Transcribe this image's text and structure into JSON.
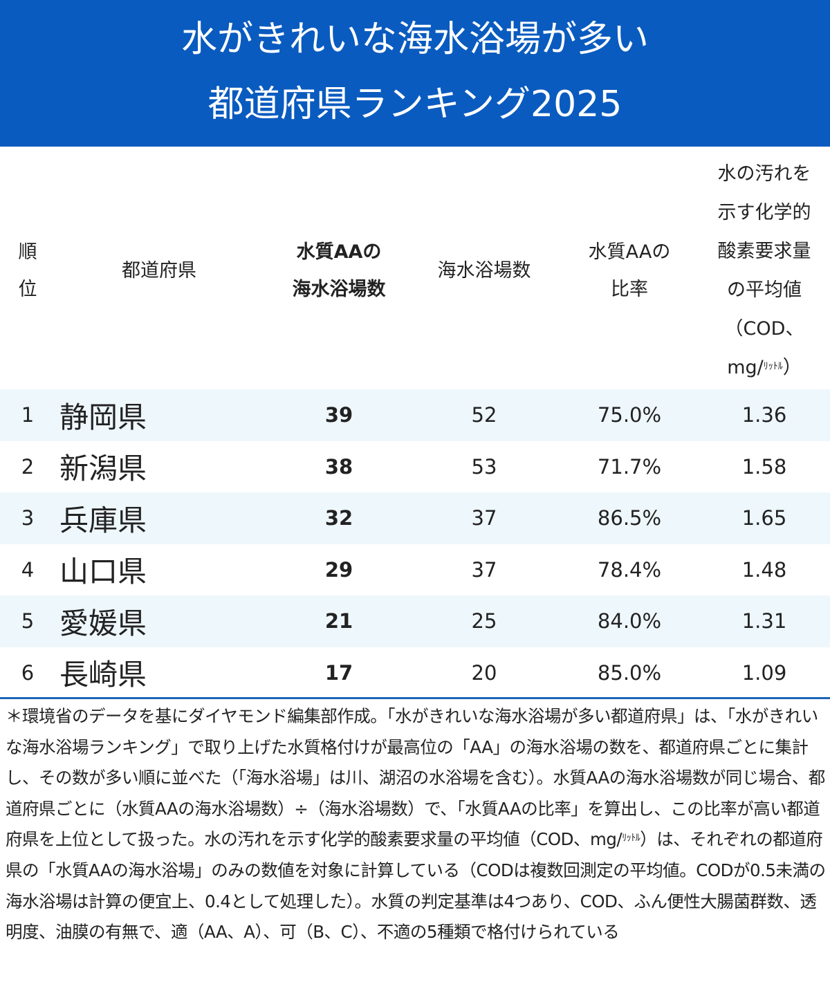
{
  "title": {
    "line1": "水がきれいな海水浴場が多い",
    "line2": "都道府県ランキング2025"
  },
  "headers": {
    "rank": "順\n位",
    "prefecture": "都道府県",
    "aa_count": "水質AAの\n海水浴場数",
    "total": "海水浴場数",
    "ratio": "水質AAの\n比率",
    "cod_main": "水の汚れを\n示す化学的\n酸素要求量\nの平均値\n（COD、\nmg/",
    "cod_unit": "ﾘｯﾄﾙ",
    "cod_close": "）"
  },
  "rows": [
    {
      "rank": "1",
      "prefecture": "静岡県",
      "aa_count": "39",
      "total": "52",
      "ratio": "75.0%",
      "cod": "1.36"
    },
    {
      "rank": "2",
      "prefecture": "新潟県",
      "aa_count": "38",
      "total": "53",
      "ratio": "71.7%",
      "cod": "1.58"
    },
    {
      "rank": "3",
      "prefecture": "兵庫県",
      "aa_count": "32",
      "total": "37",
      "ratio": "86.5%",
      "cod": "1.65"
    },
    {
      "rank": "4",
      "prefecture": "山口県",
      "aa_count": "29",
      "total": "37",
      "ratio": "78.4%",
      "cod": "1.48"
    },
    {
      "rank": "5",
      "prefecture": "愛媛県",
      "aa_count": "21",
      "total": "25",
      "ratio": "84.0%",
      "cod": "1.31"
    },
    {
      "rank": "6",
      "prefecture": "長崎県",
      "aa_count": "17",
      "total": "20",
      "ratio": "85.0%",
      "cod": "1.09"
    }
  ],
  "note": {
    "part1": "＊環境省のデータを基にダイヤモンド編集部作成。「水がきれいな海水浴場が多い都道府県」は、「水がきれいな海水浴場ランキング」で取り上げた水質格付けが最高位の「AA」の海水浴場の数を、都道府県ごとに集計し、その数が多い順に並べた（「海水浴場」は川、湖沼の水浴場を含む）。水質AAの海水浴場数が同じ場合、都道府県ごとに（水質AAの海水浴場数）÷（海水浴場数）で、「水質AAの比率」を算出し、この比率が高い都道府県を上位として扱った。水の汚れを示す化学的酸素要求量の平均値（COD、mg/",
    "unit": "ﾘｯﾄﾙ",
    "part2": "）は、それぞれの都道府県の「水質AAの海水浴場」のみの数値を対象に計算している（CODは複数回測定の平均値。CODが0.5未満の海水浴場は計算の便宜上、0.4として処理した）。水質の判定基準は4つあり、COD、ふん便性大腸菌群数、透明度、油膜の有無で、適（AA、A）、可（B、C）、不適の5種類で格付けられている"
  },
  "colors": {
    "banner": "#0a5bbf",
    "row_shade": "#eef7fc",
    "divider": "#1c63b8"
  }
}
